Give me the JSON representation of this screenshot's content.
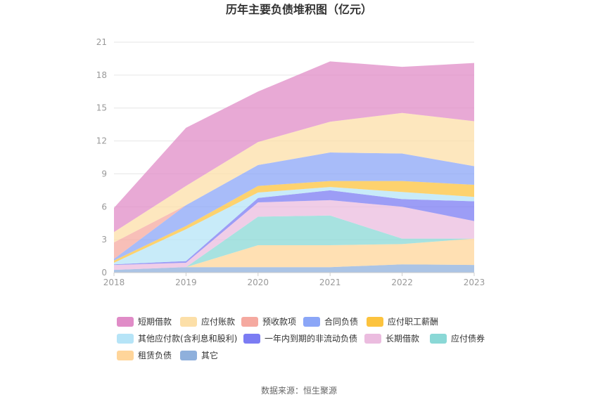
{
  "chart_data": {
    "type": "area",
    "stacked": true,
    "title": "历年主要负债堆积图（亿元）",
    "x": [
      "2018",
      "2019",
      "2020",
      "2021",
      "2022",
      "2023"
    ],
    "ylim": [
      0,
      21
    ],
    "yticks": [
      "0",
      "3",
      "6",
      "9",
      "12",
      "15",
      "18",
      "21"
    ],
    "grid": true,
    "legend_position": "bottom",
    "series": [
      {
        "name": "其它",
        "color": "#8fb0dc",
        "values": [
          0.25,
          0.5,
          0.5,
          0.5,
          0.75,
          0.7
        ]
      },
      {
        "name": "租赁负债",
        "color": "#ffd59a",
        "values": [
          0,
          0,
          2.0,
          2.0,
          1.85,
          2.4
        ]
      },
      {
        "name": "应付债券",
        "color": "#8ad8d6",
        "values": [
          0,
          0,
          2.6,
          2.7,
          0.5,
          0
        ]
      },
      {
        "name": "长期借款",
        "color": "#ebbcdf",
        "values": [
          0.45,
          0.4,
          1.3,
          1.4,
          2.9,
          1.6
        ]
      },
      {
        "name": "一年内到期的非流动负债",
        "color": "#7b7cf3",
        "values": [
          0.05,
          0.15,
          0.4,
          0.9,
          0.7,
          1.8
        ]
      },
      {
        "name": "其他应付款(含利息和股利)",
        "color": "#b6e4f7",
        "values": [
          0.15,
          2.9,
          0.5,
          0.3,
          0.65,
          0.4
        ]
      },
      {
        "name": "应付职工薪酬",
        "color": "#fcc33e",
        "values": [
          0.2,
          0.3,
          0.6,
          0.55,
          1.0,
          1.1
        ]
      },
      {
        "name": "合同负债",
        "color": "#8ba6f7",
        "values": [
          0.15,
          1.9,
          1.9,
          2.6,
          2.5,
          1.7
        ]
      },
      {
        "name": "预收款项",
        "color": "#f5a9a0",
        "values": [
          1.5,
          0,
          0,
          0,
          0,
          0
        ]
      },
      {
        "name": "应付账款",
        "color": "#fcdfa8",
        "values": [
          0.95,
          1.75,
          2.1,
          2.8,
          3.7,
          4.1
        ]
      },
      {
        "name": "短期借款",
        "color": "#e08cc7",
        "values": [
          2.2,
          5.3,
          4.6,
          5.5,
          4.2,
          5.3
        ]
      }
    ],
    "legend_order": [
      "短期借款",
      "应付账款",
      "预收款项",
      "合同负债",
      "应付职工薪酬",
      "其他应付款(含利息和股利)",
      "一年内到期的非流动负债",
      "长期借款",
      "应付债券",
      "租赁负债",
      "其它"
    ]
  },
  "source": "数据来源：恒生聚源"
}
